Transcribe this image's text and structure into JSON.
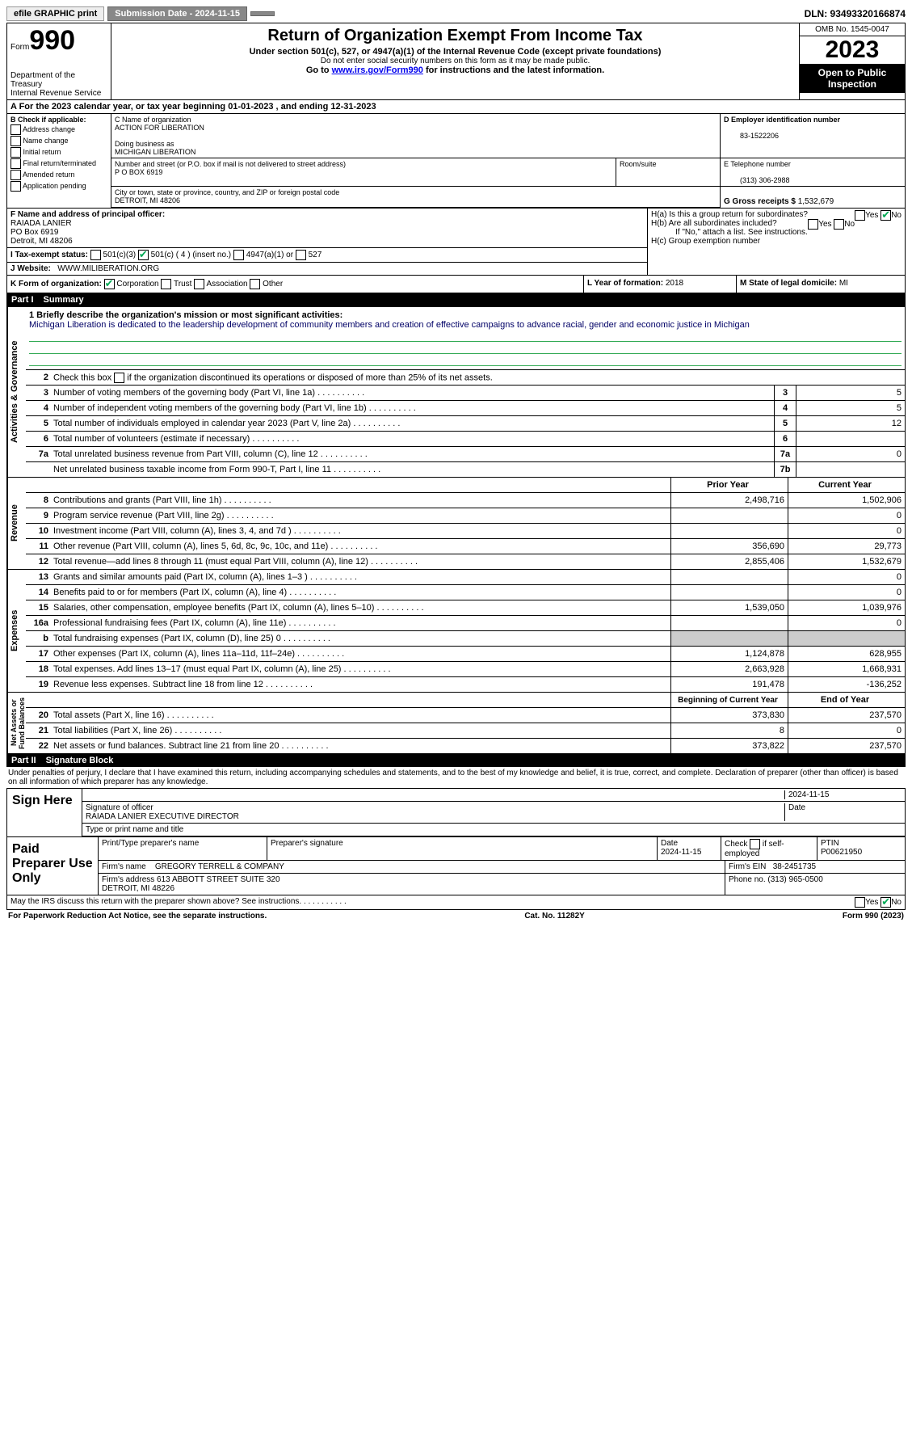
{
  "topbar": {
    "efile": "efile GRAPHIC print",
    "submission": "Submission Date - 2024-11-15",
    "dln": "DLN: 93493320166874"
  },
  "header": {
    "form": "Form",
    "num": "990",
    "title": "Return of Organization Exempt From Income Tax",
    "sub1": "Under section 501(c), 527, or 4947(a)(1) of the Internal Revenue Code (except private foundations)",
    "sub2": "Do not enter social security numbers on this form as it may be made public.",
    "sub3_pre": "Go to ",
    "sub3_link": "www.irs.gov/Form990",
    "sub3_post": " for instructions and the latest information.",
    "dept": "Department of the Treasury\nInternal Revenue Service",
    "omb": "OMB No. 1545-0047",
    "year": "2023",
    "open": "Open to Public Inspection"
  },
  "section_a": "A  For the 2023 calendar year, or tax year beginning 01-01-2023   , and ending 12-31-2023",
  "col_b": {
    "title": "B Check if applicable:",
    "opts": [
      "Address change",
      "Name change",
      "Initial return",
      "Final return/terminated",
      "Amended return",
      "Application pending"
    ]
  },
  "org": {
    "name_label": "C Name of organization",
    "name": "ACTION FOR LIBERATION",
    "dba_label": "Doing business as",
    "dba": "MICHIGAN LIBERATION",
    "addr_label": "Number and street (or P.O. box if mail is not delivered to street address)",
    "addr": "P O BOX 6919",
    "room_label": "Room/suite",
    "city_label": "City or town, state or province, country, and ZIP or foreign postal code",
    "city": "DETROIT, MI  48206"
  },
  "col_d": {
    "ein_label": "D Employer identification number",
    "ein": "83-1522206",
    "phone_label": "E Telephone number",
    "phone": "(313) 306-2988",
    "gross_label": "G Gross receipts $",
    "gross": "1,532,679"
  },
  "officer": {
    "label": "F  Name and address of principal officer:",
    "name": "RAIADA LANIER",
    "addr1": "PO Box 6919",
    "addr2": "Detroit, MI  48206"
  },
  "h": {
    "ha": "H(a)  Is this a group return for subordinates?",
    "hb": "H(b)  Are all subordinates included?",
    "hb_note": "If \"No,\" attach a list. See instructions.",
    "hc": "H(c)  Group exemption number",
    "yes": "Yes",
    "no": "No"
  },
  "tax_status": {
    "label": "I   Tax-exempt status:",
    "c3": "501(c)(3)",
    "c": "501(c) ( 4 ) (insert no.)",
    "a1": "4947(a)(1) or",
    "s527": "527"
  },
  "website": {
    "label": "J   Website:",
    "url": "WWW.MILIBERATION.ORG"
  },
  "k": {
    "label": "K Form of organization:",
    "corp": "Corporation",
    "trust": "Trust",
    "assoc": "Association",
    "other": "Other"
  },
  "l": {
    "label": "L Year of formation:",
    "val": "2018"
  },
  "m": {
    "label": "M State of legal domicile:",
    "val": "MI"
  },
  "part1": {
    "label": "Part I",
    "title": "Summary"
  },
  "mission": {
    "q": "1  Briefly describe the organization's mission or most significant activities:",
    "text": "Michigan Liberation is dedicated to the leadership development of community members and creation of effective campaigns to advance racial, gender and economic justice in Michigan"
  },
  "gov_rows": [
    {
      "n": "2",
      "t": "Check this box   if the organization discontinued its operations or disposed of more than 25% of its net assets."
    },
    {
      "n": "3",
      "t": "Number of voting members of the governing body (Part VI, line 1a)",
      "cn": "3",
      "cv": "5"
    },
    {
      "n": "4",
      "t": "Number of independent voting members of the governing body (Part VI, line 1b)",
      "cn": "4",
      "cv": "5"
    },
    {
      "n": "5",
      "t": "Total number of individuals employed in calendar year 2023 (Part V, line 2a)",
      "cn": "5",
      "cv": "12"
    },
    {
      "n": "6",
      "t": "Total number of volunteers (estimate if necessary)",
      "cn": "6",
      "cv": ""
    },
    {
      "n": "7a",
      "t": "Total unrelated business revenue from Part VIII, column (C), line 12",
      "cn": "7a",
      "cv": "0"
    },
    {
      "n": "",
      "t": "Net unrelated business taxable income from Form 990-T, Part I, line 11",
      "cn": "7b",
      "cv": ""
    }
  ],
  "rev_header": {
    "py": "Prior Year",
    "cy": "Current Year"
  },
  "rev_rows": [
    {
      "n": "8",
      "t": "Contributions and grants (Part VIII, line 1h)",
      "py": "2,498,716",
      "cy": "1,502,906"
    },
    {
      "n": "9",
      "t": "Program service revenue (Part VIII, line 2g)",
      "py": "",
      "cy": "0"
    },
    {
      "n": "10",
      "t": "Investment income (Part VIII, column (A), lines 3, 4, and 7d )",
      "py": "",
      "cy": "0"
    },
    {
      "n": "11",
      "t": "Other revenue (Part VIII, column (A), lines 5, 6d, 8c, 9c, 10c, and 11e)",
      "py": "356,690",
      "cy": "29,773"
    },
    {
      "n": "12",
      "t": "Total revenue—add lines 8 through 11 (must equal Part VIII, column (A), line 12)",
      "py": "2,855,406",
      "cy": "1,532,679"
    }
  ],
  "exp_rows": [
    {
      "n": "13",
      "t": "Grants and similar amounts paid (Part IX, column (A), lines 1–3 )",
      "py": "",
      "cy": "0"
    },
    {
      "n": "14",
      "t": "Benefits paid to or for members (Part IX, column (A), line 4)",
      "py": "",
      "cy": "0"
    },
    {
      "n": "15",
      "t": "Salaries, other compensation, employee benefits (Part IX, column (A), lines 5–10)",
      "py": "1,539,050",
      "cy": "1,039,976"
    },
    {
      "n": "16a",
      "t": "Professional fundraising fees (Part IX, column (A), line 11e)",
      "py": "",
      "cy": "0"
    },
    {
      "n": "b",
      "t": "Total fundraising expenses (Part IX, column (D), line 25) 0",
      "py": "shaded",
      "cy": "shaded"
    },
    {
      "n": "17",
      "t": "Other expenses (Part IX, column (A), lines 11a–11d, 11f–24e)",
      "py": "1,124,878",
      "cy": "628,955"
    },
    {
      "n": "18",
      "t": "Total expenses. Add lines 13–17 (must equal Part IX, column (A), line 25)",
      "py": "2,663,928",
      "cy": "1,668,931"
    },
    {
      "n": "19",
      "t": "Revenue less expenses. Subtract line 18 from line 12",
      "py": "191,478",
      "cy": "-136,252"
    }
  ],
  "na_header": {
    "py": "Beginning of Current Year",
    "cy": "End of Year"
  },
  "na_rows": [
    {
      "n": "20",
      "t": "Total assets (Part X, line 16)",
      "py": "373,830",
      "cy": "237,570"
    },
    {
      "n": "21",
      "t": "Total liabilities (Part X, line 26)",
      "py": "8",
      "cy": "0"
    },
    {
      "n": "22",
      "t": "Net assets or fund balances. Subtract line 21 from line 20",
      "py": "373,822",
      "cy": "237,570"
    }
  ],
  "vert": {
    "gov": "Activities & Governance",
    "rev": "Revenue",
    "exp": "Expenses",
    "na": "Net Assets or\nFund Balances"
  },
  "part2": {
    "label": "Part II",
    "title": "Signature Block"
  },
  "sig_decl": "Under penalties of perjury, I declare that I have examined this return, including accompanying schedules and statements, and to the best of my knowledge and belief, it is true, correct, and complete. Declaration of preparer (other than officer) is based on all information of which preparer has any knowledge.",
  "sign": {
    "here": "Sign Here",
    "sig_label": "Signature of officer",
    "date": "2024-11-15",
    "name": "RAIADA LANIER  EXECUTIVE DIRECTOR",
    "type_label": "Type or print name and title"
  },
  "paid": {
    "label": "Paid Preparer Use Only",
    "h1": "Print/Type preparer's name",
    "h2": "Preparer's signature",
    "h3": "Date",
    "h3v": "2024-11-15",
    "h4": "Check         if self-employed",
    "h5": "PTIN",
    "h5v": "P00621950",
    "firm_name_l": "Firm's name",
    "firm_name": "GREGORY TERRELL & COMPANY",
    "firm_ein_l": "Firm's EIN",
    "firm_ein": "38-2451735",
    "firm_addr_l": "Firm's address",
    "firm_addr": "613 ABBOTT STREET SUITE 320\nDETROIT, MI  48226",
    "phone_l": "Phone no.",
    "phone": "(313) 965-0500"
  },
  "discuss": "May the IRS discuss this return with the preparer shown above? See instructions.",
  "footer": {
    "pra": "For Paperwork Reduction Act Notice, see the separate instructions.",
    "cat": "Cat. No. 11282Y",
    "form": "Form 990 (2023)"
  }
}
